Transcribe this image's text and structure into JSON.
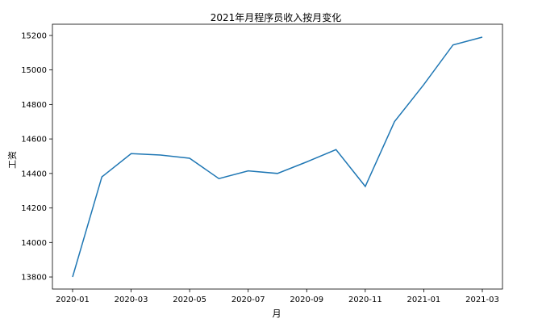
{
  "chart_data": {
    "type": "line",
    "title": "2021年月程序员收入按月变化",
    "xlabel": "月",
    "ylabel": "工资",
    "x": [
      "2020-01",
      "2020-02",
      "2020-03",
      "2020-04",
      "2020-05",
      "2020-06",
      "2020-07",
      "2020-08",
      "2020-09",
      "2020-10",
      "2020-11",
      "2020-12",
      "2021-01",
      "2021-02",
      "2021-03"
    ],
    "x_tick_labels": [
      "2020-01",
      "2020-03",
      "2020-05",
      "2020-07",
      "2020-09",
      "2020-11",
      "2021-01",
      "2021-03"
    ],
    "series": [
      {
        "color": "#1f77b4",
        "values": [
          13800,
          14380,
          14515,
          14507,
          14488,
          14370,
          14415,
          14400,
          14467,
          14538,
          14325,
          14700,
          14915,
          15145,
          15190
        ]
      }
    ],
    "ylim": [
      13730,
      15265
    ],
    "y_ticks": [
      13800,
      14000,
      14200,
      14400,
      14600,
      14800,
      15000,
      15200
    ],
    "grid": false,
    "legend": "none"
  }
}
